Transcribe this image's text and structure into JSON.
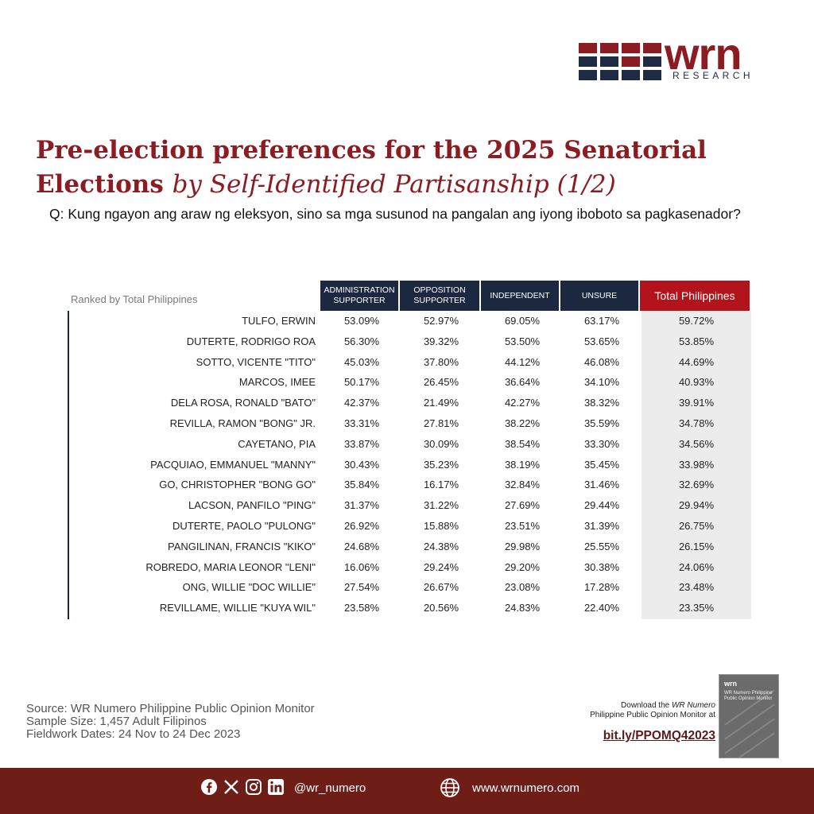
{
  "brand": {
    "logo_word": "wrn",
    "logo_sub": "RESEARCH",
    "colors": {
      "maroon": "#8a1c22",
      "navy": "#1f2a44",
      "red": "#b3141b",
      "bar": "#6e1e16"
    }
  },
  "title": {
    "main": "Pre-election preferences for the 2025 Senatorial Elections",
    "italic": "by Self-Identified Partisanship (1/2)"
  },
  "question": "Q: Kung ngayon ang araw ng eleksyon, sino sa mga susunod na pangalan ang iyong iboboto sa pagkasenador?",
  "table": {
    "rank_label": "Ranked by Total Philippines",
    "headers": [
      "ADMINISTRATION SUPPORTER",
      "OPPOSITION SUPPORTER",
      "INDEPENDENT",
      "UNSURE",
      "Total Philippines"
    ],
    "rows": [
      {
        "name": "TULFO, ERWIN",
        "v": [
          "53.09%",
          "52.97%",
          "69.05%",
          "63.17%",
          "59.72%"
        ]
      },
      {
        "name": "DUTERTE, RODRIGO ROA",
        "v": [
          "56.30%",
          "39.32%",
          "53.50%",
          "53.65%",
          "53.85%"
        ]
      },
      {
        "name": "SOTTO, VICENTE \"TITO\"",
        "v": [
          "45.03%",
          "37.80%",
          "44.12%",
          "46.08%",
          "44.69%"
        ]
      },
      {
        "name": "MARCOS, IMEE",
        "v": [
          "50.17%",
          "26.45%",
          "36.64%",
          "34.10%",
          "40.93%"
        ]
      },
      {
        "name": "DELA ROSA, RONALD \"BATO\"",
        "v": [
          "42.37%",
          "21.49%",
          "42.27%",
          "38.32%",
          "39.91%"
        ]
      },
      {
        "name": "REVILLA, RAMON \"BONG\" JR.",
        "v": [
          "33.31%",
          "27.81%",
          "38.22%",
          "35.59%",
          "34.78%"
        ]
      },
      {
        "name": "CAYETANO, PIA",
        "v": [
          "33.87%",
          "30.09%",
          "38.54%",
          "33.30%",
          "34.56%"
        ]
      },
      {
        "name": "PACQUIAO, EMMANUEL \"MANNY\"",
        "v": [
          "30.43%",
          "35.23%",
          "38.19%",
          "35.45%",
          "33.98%"
        ]
      },
      {
        "name": "GO, CHRISTOPHER \"BONG GO\"",
        "v": [
          "35.84%",
          "16.17%",
          "32.84%",
          "31.46%",
          "32.69%"
        ]
      },
      {
        "name": "LACSON, PANFILO \"PING\"",
        "v": [
          "31.37%",
          "31.22%",
          "27.69%",
          "29.44%",
          "29.94%"
        ]
      },
      {
        "name": "DUTERTE, PAOLO \"PULONG\"",
        "v": [
          "26.92%",
          "15.88%",
          "23.51%",
          "31.39%",
          "26.75%"
        ]
      },
      {
        "name": "PANGILINAN, FRANCIS \"KIKO\"",
        "v": [
          "24.68%",
          "24.38%",
          "29.98%",
          "25.55%",
          "26.15%"
        ]
      },
      {
        "name": "ROBREDO, MARIA LEONOR \"LENI\"",
        "v": [
          "16.06%",
          "29.24%",
          "29.20%",
          "30.38%",
          "24.06%"
        ]
      },
      {
        "name": "ONG, WILLIE \"DOC WILLIE\"",
        "v": [
          "27.54%",
          "26.67%",
          "23.08%",
          "17.28%",
          "23.48%"
        ]
      },
      {
        "name": "REVILLAME, WILLIE \"KUYA WIL\"",
        "v": [
          "23.58%",
          "20.56%",
          "24.83%",
          "22.40%",
          "23.35%"
        ]
      }
    ]
  },
  "footer": {
    "source": "Source: WR Numero Philippine Public Opinion Monitor",
    "sample": "Sample Size: 1,457 Adult Filipinos",
    "fieldwork": "Fieldwork Dates: 24 Nov to 24 Dec 2023",
    "download_pre": "Download the ",
    "download_ital": "WR Numero",
    "download_line2": "Philippine Public Opinion Monitor at",
    "download_link": "bit.ly/PPOMQ42023",
    "cover_logo": "wrn",
    "cover_title": "WR Numero Philippine Public Opinion Monitor"
  },
  "social": {
    "icons": [
      "facebook-icon",
      "x-icon",
      "instagram-icon",
      "linkedin-icon"
    ],
    "handle": "@wr_numero",
    "website": "www.wrnumero.com"
  }
}
